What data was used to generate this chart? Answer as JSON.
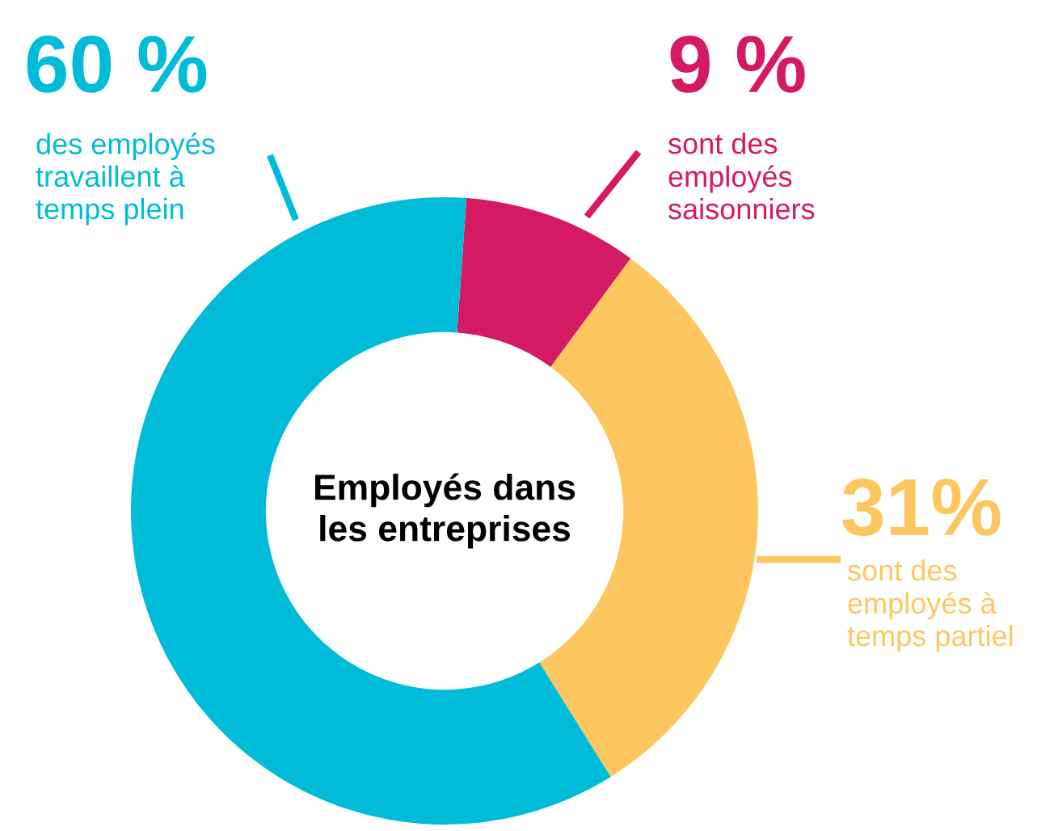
{
  "chart_data": {
    "type": "donut",
    "title": "Employés dans les entreprises",
    "categories": [
      "sont des employés saisonniers",
      "sont des employés à temps partiel",
      "des employés travaillent à temps plein"
    ],
    "values": [
      9,
      31,
      60
    ],
    "colors": [
      "#d41a63",
      "#fec65e",
      "#00bcd8"
    ],
    "value_labels": [
      "9 %",
      "31%",
      "60 %"
    ]
  }
}
